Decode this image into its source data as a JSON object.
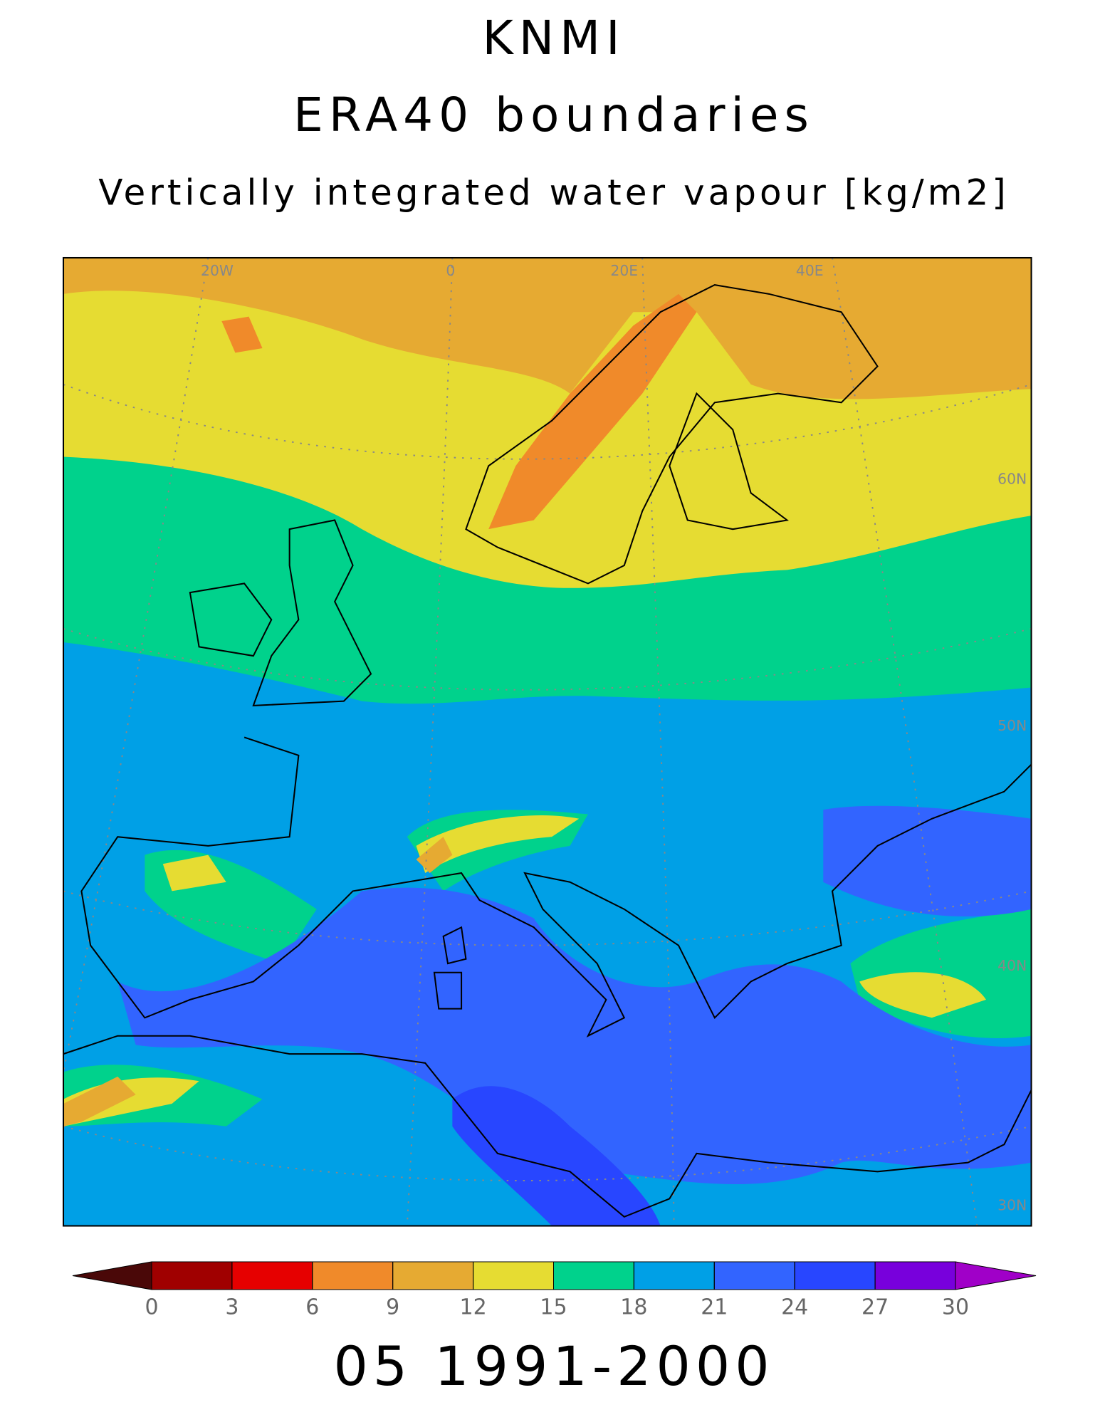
{
  "header": {
    "title": "KNMI",
    "subtitle": "ERA40 boundaries",
    "variable": "Vertically integrated water vapour [kg/m2]"
  },
  "grid": {
    "lon_labels": [
      "20W",
      "0",
      "20E",
      "40E"
    ],
    "lat_labels": [
      "60N",
      "50N",
      "40N",
      "30N"
    ]
  },
  "colorbar": {
    "ticks": [
      0,
      3,
      6,
      9,
      12,
      15,
      18,
      21,
      24,
      27,
      30
    ],
    "colors": [
      "#4a0808",
      "#a00000",
      "#e60000",
      "#f08a2a",
      "#e6aa32",
      "#e6dc32",
      "#00d28c",
      "#00a0e6",
      "#3264ff",
      "#2846ff",
      "#7800dc",
      "#a000c8"
    ]
  },
  "footer": "05 1991-2000"
}
